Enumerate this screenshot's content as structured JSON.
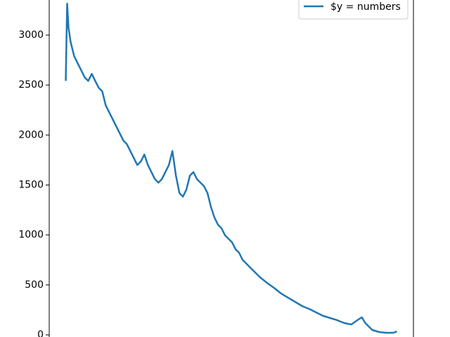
{
  "chart_data": {
    "type": "line",
    "x": [
      0,
      2,
      4,
      7,
      12,
      17,
      22,
      27,
      32,
      37,
      42,
      47,
      52,
      57,
      62,
      67,
      72,
      77,
      82,
      87,
      92,
      97,
      102,
      107,
      112,
      117,
      122,
      127,
      132,
      137,
      142,
      147,
      152,
      157,
      162,
      167,
      172,
      177,
      182,
      187,
      192,
      197,
      202,
      207,
      212,
      217,
      222,
      227,
      232,
      237,
      242,
      247,
      252,
      257,
      262,
      267,
      277,
      287,
      297,
      307,
      317,
      327,
      337,
      347,
      357,
      367,
      377,
      387,
      397,
      407,
      417,
      422,
      427,
      432,
      437,
      447,
      457,
      467,
      472
    ],
    "series": [
      {
        "name": "$y = numbers",
        "color": "#1f77b4",
        "values": [
          2542,
          3315,
          3069,
          2928,
          2788,
          2718,
          2647,
          2577,
          2542,
          2612,
          2542,
          2472,
          2437,
          2296,
          2226,
          2156,
          2086,
          2016,
          1945,
          1910,
          1840,
          1770,
          1700,
          1735,
          1805,
          1700,
          1629,
          1559,
          1524,
          1559,
          1629,
          1700,
          1840,
          1594,
          1419,
          1384,
          1454,
          1594,
          1629,
          1559,
          1524,
          1489,
          1419,
          1278,
          1173,
          1103,
          1067,
          997,
          962,
          927,
          857,
          822,
          751,
          716,
          681,
          646,
          576,
          520,
          470,
          414,
          372,
          330,
          288,
          260,
          225,
          190,
          169,
          147,
          119,
          105,
          154,
          176,
          119,
          84,
          49,
          28,
          21,
          21,
          35
        ]
      }
    ],
    "xlim": [
      -23.6,
      495.6
    ],
    "ylim": [
      -21,
      3351
    ],
    "yticks": [
      0,
      500,
      1000,
      1500,
      2000,
      2500,
      3000
    ],
    "legend": "upper right"
  }
}
